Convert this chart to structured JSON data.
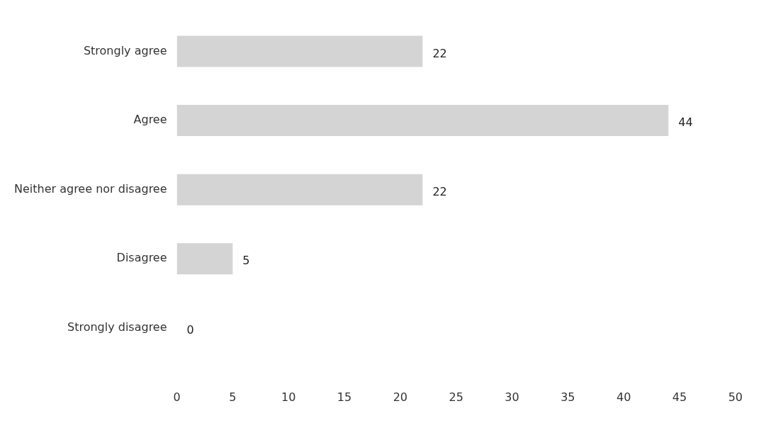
{
  "chart_data": {
    "type": "bar",
    "orientation": "horizontal",
    "categories": [
      "Strongly agree",
      "Agree",
      "Neither agree nor disagree",
      "Disagree",
      "Strongly disagree"
    ],
    "values": [
      22,
      44,
      22,
      5,
      0
    ],
    "color": "#d4d4d4",
    "xlim": [
      0,
      50
    ],
    "xticks": [
      0,
      5,
      10,
      15,
      20,
      25,
      30,
      35,
      40,
      45,
      50
    ],
    "data_labels": true,
    "grid": false,
    "legend": false
  }
}
